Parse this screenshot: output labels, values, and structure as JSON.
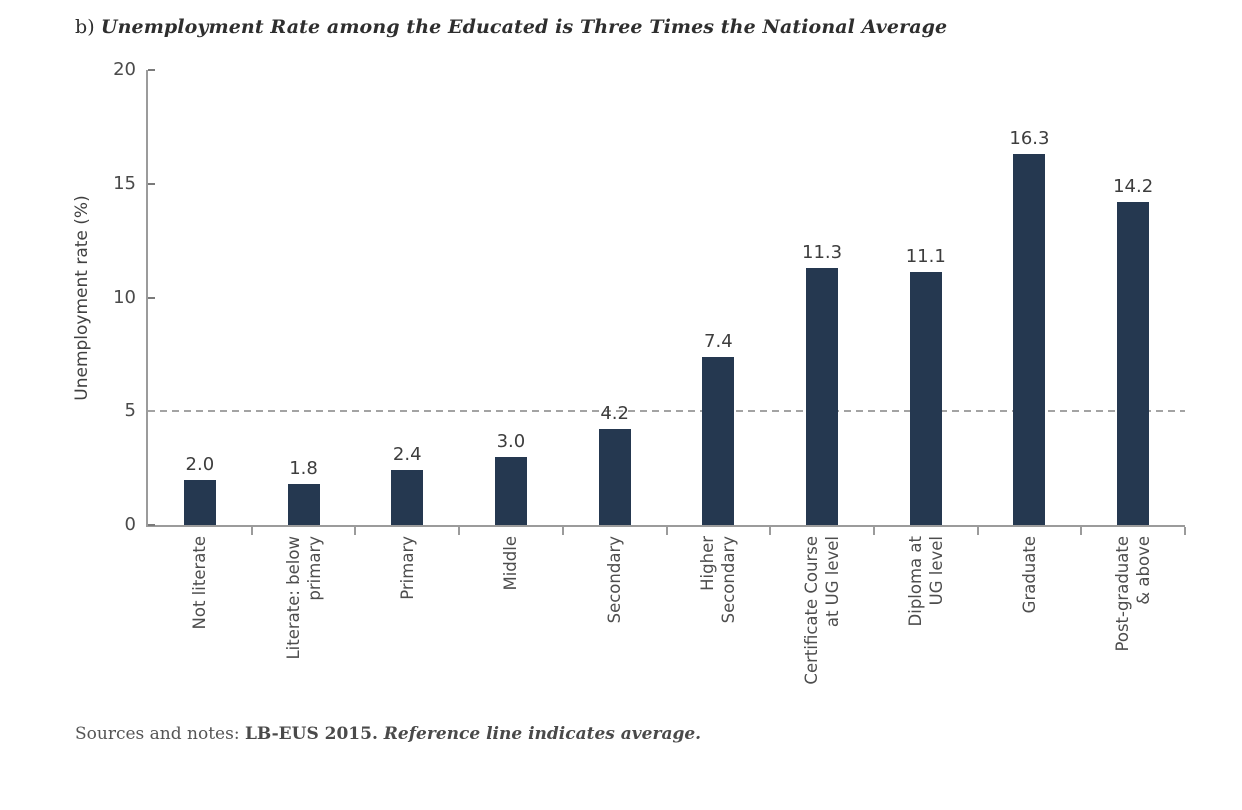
{
  "title": {
    "prefix": "b) ",
    "text": "Unemployment Rate among the Educated is Three Times the National Average"
  },
  "chart_data": {
    "type": "bar",
    "title": "b) Unemployment Rate among the Educated is Three Times the National Average",
    "categories": [
      "Not literate",
      "Literate: below\nprimary",
      "Primary",
      "Middle",
      "Secondary",
      "Higher\nSecondary",
      "Certificate Course\nat UG level",
      "Diploma at\nUG level",
      "Graduate",
      "Post-graduate\n& above"
    ],
    "values": [
      2.0,
      1.8,
      2.4,
      3.0,
      4.2,
      7.4,
      11.3,
      11.1,
      16.3,
      14.2
    ],
    "bar_labels": [
      "2.0",
      "1.8",
      "2.4",
      "3.0",
      "4.2",
      "7.4",
      "11.3",
      "11.1",
      "16.3",
      "14.2"
    ],
    "xlabel": "",
    "ylabel": "Unemployment rate (%)",
    "ylim": [
      0,
      20
    ],
    "yticks": [
      0,
      5,
      10,
      15,
      20
    ],
    "ytick_labels": [
      "0",
      "5",
      "10",
      "15",
      "20"
    ],
    "reference_line": {
      "value": 5,
      "style": "dashed",
      "color": "#a3a3a3"
    },
    "grid": false,
    "legend": null,
    "bar_color": "#253850",
    "axis_color": "#9b9b9b",
    "value_labels_shown": true
  },
  "footer": {
    "label": "Sources and notes: ",
    "source": "LB-EUS 2015. ",
    "note": "Reference line indicates average."
  }
}
